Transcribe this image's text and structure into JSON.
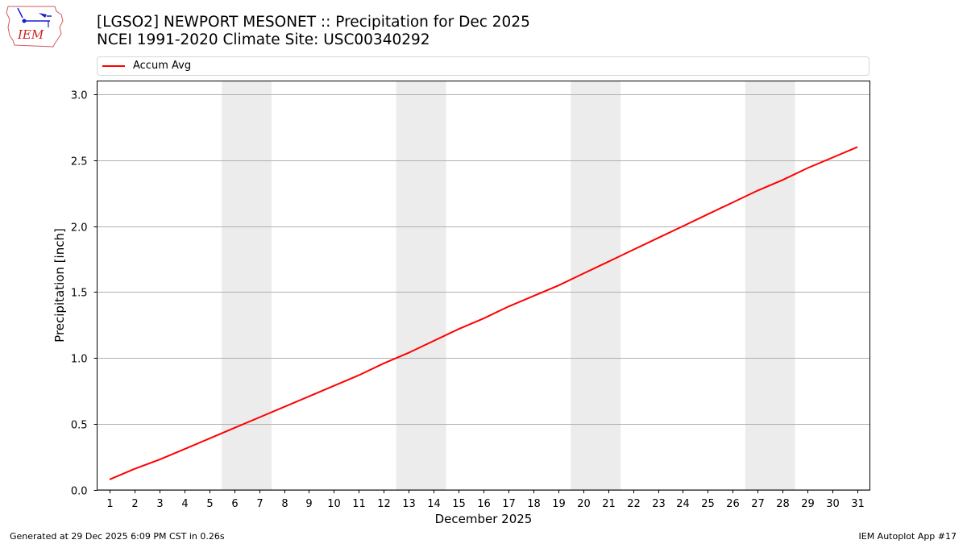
{
  "header": {
    "title_line1": "[LGSO2] NEWPORT MESONET :: Precipitation for Dec 2025",
    "title_line2": "NCEI 1991-2020 Climate Site: USC00340292",
    "logo_text": "IEM"
  },
  "legend": {
    "items": [
      {
        "label": "Accum Avg",
        "color": "#ff0000"
      }
    ]
  },
  "footer": {
    "generated": "Generated at 29 Dec 2025 6:09 PM CST in 0.26s",
    "app": "IEM Autoplot App #17"
  },
  "colors": {
    "line": "#ff0000",
    "weekend_band": "#ececec",
    "grid": "#b0b0b0"
  },
  "chart_data": {
    "type": "line",
    "title": "[LGSO2] NEWPORT MESONET :: Precipitation for Dec 2025",
    "subtitle": "NCEI 1991-2020 Climate Site: USC00340292",
    "xlabel": "December 2025",
    "ylabel": "Precipitation [inch]",
    "ylim": [
      0,
      3.1
    ],
    "xlim": [
      0.5,
      31.5
    ],
    "yticks": [
      "0.0",
      "0.5",
      "1.0",
      "1.5",
      "2.0",
      "2.5",
      "3.0"
    ],
    "x": [
      1,
      2,
      3,
      4,
      5,
      6,
      7,
      8,
      9,
      10,
      11,
      12,
      13,
      14,
      15,
      16,
      17,
      18,
      19,
      20,
      21,
      22,
      23,
      24,
      25,
      26,
      27,
      28,
      29,
      30,
      31
    ],
    "series": [
      {
        "name": "Accum Avg",
        "color": "#ff0000",
        "values": [
          0.08,
          0.16,
          0.23,
          0.31,
          0.39,
          0.47,
          0.55,
          0.63,
          0.71,
          0.79,
          0.87,
          0.96,
          1.04,
          1.13,
          1.22,
          1.3,
          1.39,
          1.47,
          1.55,
          1.64,
          1.73,
          1.82,
          1.91,
          2.0,
          2.09,
          2.18,
          2.27,
          2.35,
          2.44,
          2.52,
          2.6
        ]
      }
    ],
    "shaded_weekends": [
      [
        6,
        7
      ],
      [
        13,
        14
      ],
      [
        20,
        21
      ],
      [
        27,
        28
      ]
    ],
    "grid": "y-only",
    "legend_position": "top"
  }
}
